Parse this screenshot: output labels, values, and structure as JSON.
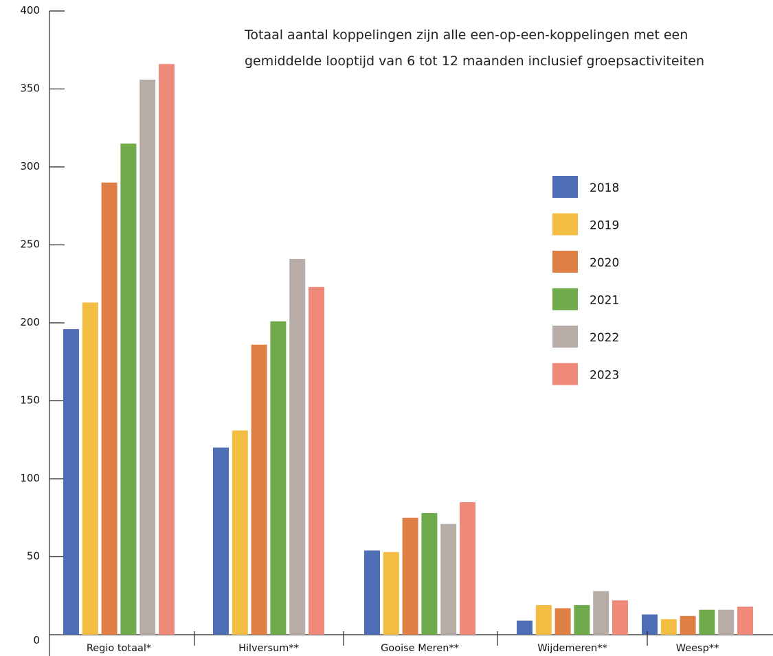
{
  "chart_data": {
    "type": "bar",
    "title": "",
    "note_lines": [
      "Totaal aantal koppelingen zijn alle een-op-een-koppelingen met een",
      "gemiddelde looptijd van 6 tot 12 maanden inclusief groepsactiviteiten"
    ],
    "xlabel": "",
    "ylabel": "",
    "ylim": [
      0,
      400
    ],
    "yticks": [
      400,
      350,
      300,
      250,
      200,
      150,
      100,
      50,
      0
    ],
    "grid": false,
    "legend_position": "right",
    "categories": [
      "Regio totaal*",
      "Hilversum**",
      "Gooise Meren**",
      "Wijdemeren**",
      "Weesp**"
    ],
    "series": [
      {
        "name": "2018",
        "color": "#4e6fb5",
        "values": [
          196,
          120,
          54,
          9,
          13
        ]
      },
      {
        "name": "2019",
        "color": "#f2bd42",
        "values": [
          213,
          131,
          53,
          19,
          10
        ]
      },
      {
        "name": "2020",
        "color": "#e07f45",
        "values": [
          290,
          186,
          75,
          17,
          12
        ]
      },
      {
        "name": "2021",
        "color": "#6fab4a",
        "values": [
          315,
          201,
          78,
          19,
          16
        ]
      },
      {
        "name": "2022",
        "color": "#b8aca6",
        "values": [
          356,
          241,
          71,
          28,
          16
        ]
      },
      {
        "name": "2023",
        "color": "#ef8a7b",
        "values": [
          366,
          223,
          85,
          22,
          18
        ]
      }
    ]
  }
}
